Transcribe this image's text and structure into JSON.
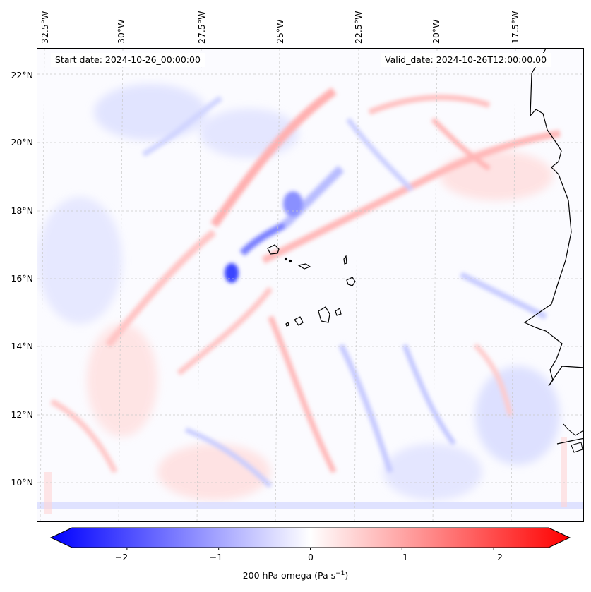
{
  "map": {
    "start_date": "Start date: 2024-10-26_00:00:00",
    "valid_date": "Valid_date: 2024-10-26T12:00:00.00",
    "lon_labels": [
      "32.5°W",
      "30°W",
      "27.5°W",
      "25°W",
      "22.5°W",
      "20°W",
      "17.5°W"
    ],
    "lat_labels": [
      "22°N",
      "20°N",
      "18°N",
      "16°N",
      "14°N",
      "12°N",
      "10°N"
    ],
    "field": "200 hPa omega",
    "colors": {
      "negative": "#0000ff",
      "neutral": "#ffffff",
      "positive": "#ff0000",
      "coast": "#000000"
    }
  },
  "colorbar": {
    "title": "200 hPa omega (Pa s",
    "title_exp": "−1",
    "title_close": ")",
    "ticks": [
      "−2",
      "−1",
      "0",
      "1",
      "2"
    ],
    "tick_values": [
      -2,
      -1,
      0,
      1,
      2
    ],
    "range": [
      -2.6,
      2.6
    ]
  }
}
